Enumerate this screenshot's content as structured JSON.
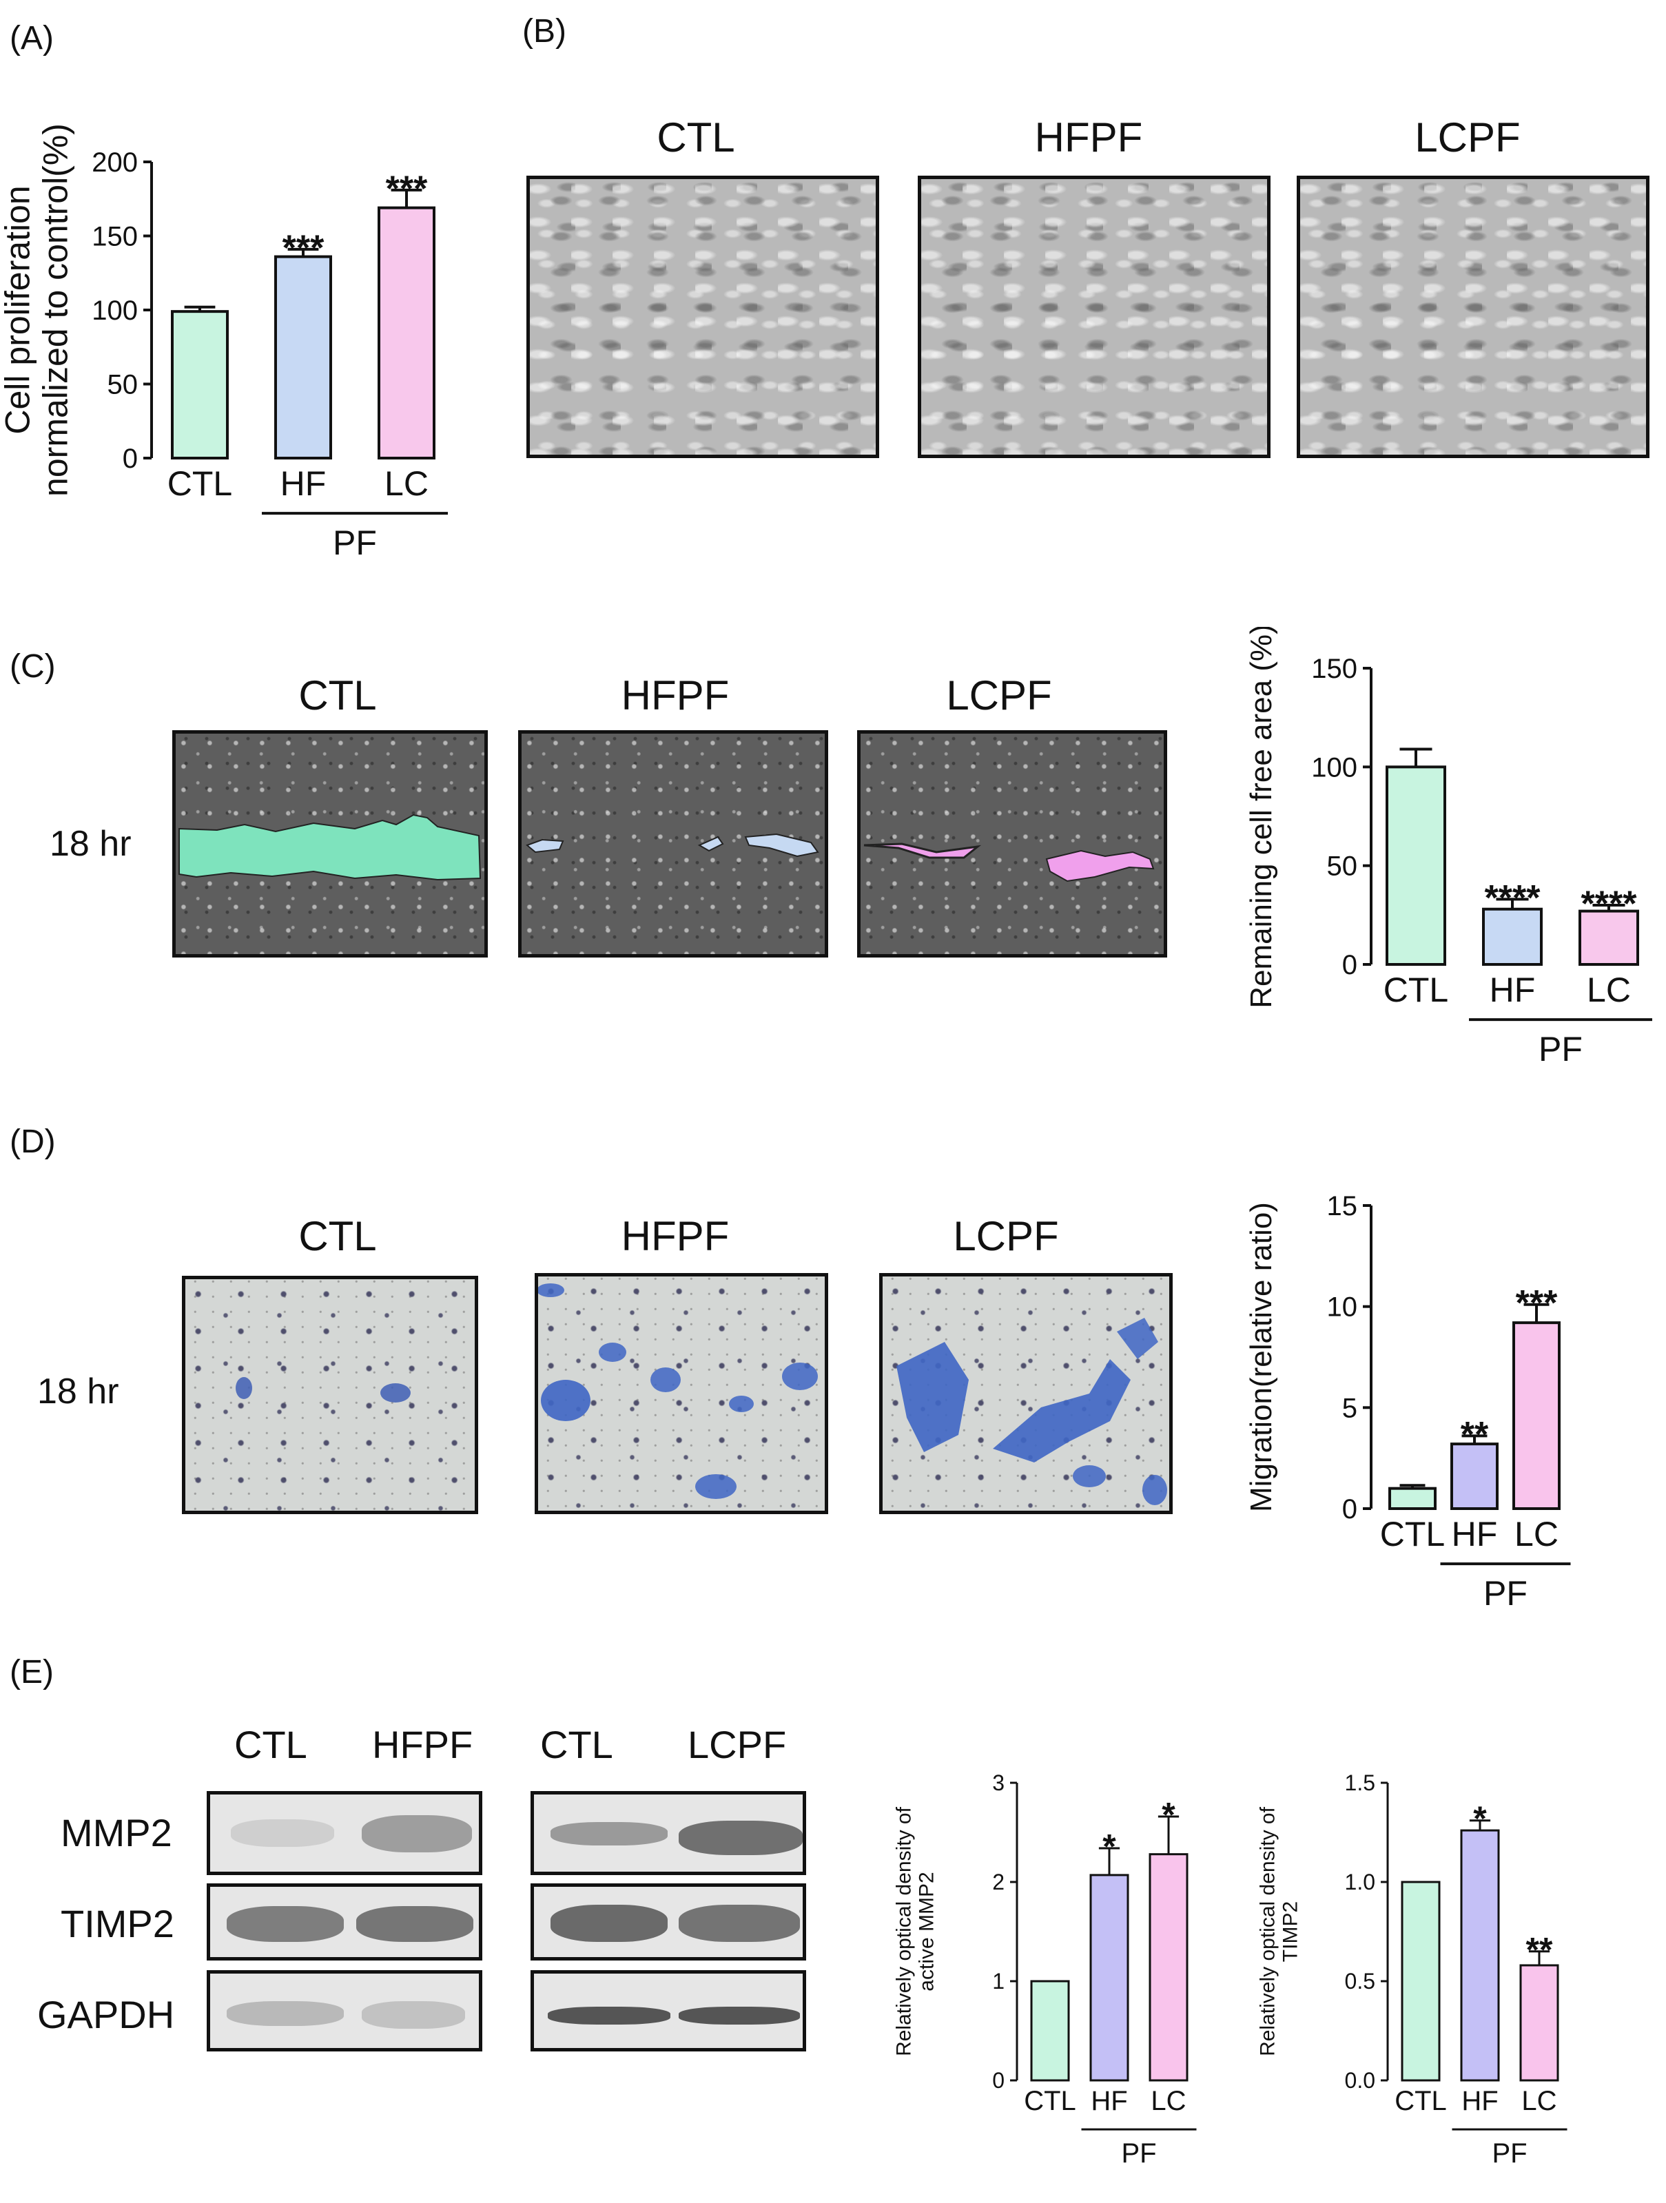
{
  "panel_labels": {
    "a": "(A)",
    "b": "(B)",
    "c": "(C)",
    "d": "(D)",
    "e": "(E)"
  },
  "panel_b": {
    "titles": [
      "CTL",
      "HFPF",
      "LCPF"
    ]
  },
  "panel_c": {
    "titles": [
      "CTL",
      "HFPF",
      "LCPF"
    ],
    "row_label": "18 hr"
  },
  "panel_d": {
    "titles": [
      "CTL",
      "HFPF",
      "LCPF"
    ],
    "row_label": "18 hr"
  },
  "panel_e": {
    "blot_left_titles": [
      "CTL",
      "HFPF"
    ],
    "blot_right_titles": [
      "CTL",
      "LCPF"
    ],
    "proteins": [
      "MMP2",
      "TIMP2",
      "GAPDH"
    ]
  },
  "colors": {
    "ctl": "#c8f4e0",
    "hf": "#c7d9f4",
    "lc": "#f8c8ec",
    "hf_e": "#c4c0f6",
    "lc_e": "#f9c4ec",
    "scratch_ctl": "#7ee3bd",
    "scratch_hf": "#c6d9f2",
    "scratch_lc": "#f0a0ec"
  },
  "chart_data": [
    {
      "id": "A",
      "type": "bar",
      "ylabel": [
        "Cell proliferation",
        "normalized to control(%)"
      ],
      "categories": [
        "CTL",
        "HF",
        "LC"
      ],
      "group_label": "PF",
      "values": [
        99,
        136,
        169
      ],
      "errors": [
        3,
        5,
        12
      ],
      "significance": [
        "",
        "***",
        "***"
      ],
      "ylim": [
        0,
        200
      ],
      "yticks": [
        "0",
        "50",
        "100",
        "150",
        "200"
      ],
      "ytick_values": [
        0,
        50,
        100,
        150,
        200
      ]
    },
    {
      "id": "C",
      "type": "bar",
      "ylabel": [
        "Remaining cell free area (%)"
      ],
      "categories": [
        "CTL",
        "HF",
        "LC"
      ],
      "group_label": "PF",
      "values": [
        100,
        28,
        27
      ],
      "errors": [
        9,
        5,
        3
      ],
      "significance": [
        "",
        "****",
        "****"
      ],
      "ylim": [
        0,
        150
      ],
      "yticks": [
        "0",
        "50",
        "100",
        "150"
      ],
      "ytick_values": [
        0,
        50,
        100,
        150
      ]
    },
    {
      "id": "D",
      "type": "bar",
      "ylabel": [
        "Migration(relative ratio)"
      ],
      "categories": [
        "CTL",
        "HF",
        "LC"
      ],
      "group_label": "PF",
      "values": [
        1.0,
        3.2,
        9.2
      ],
      "errors": [
        0.15,
        0.4,
        0.9
      ],
      "significance": [
        "",
        "**",
        "***"
      ],
      "ylim": [
        0,
        15
      ],
      "yticks": [
        "0",
        "5",
        "10",
        "15"
      ],
      "ytick_values": [
        0,
        5,
        10,
        15
      ]
    },
    {
      "id": "E1",
      "type": "bar",
      "ylabel": [
        "Relatively optical density of",
        "active MMP2"
      ],
      "categories": [
        "CTL",
        "HF",
        "LC"
      ],
      "group_label": "PF",
      "values": [
        1.0,
        2.07,
        2.28
      ],
      "errors": [
        0,
        0.27,
        0.38
      ],
      "significance": [
        "",
        "*",
        "*"
      ],
      "ylim": [
        0,
        3
      ],
      "yticks": [
        "0",
        "1",
        "2",
        "3"
      ],
      "ytick_values": [
        0,
        1,
        2,
        3
      ]
    },
    {
      "id": "E2",
      "type": "bar",
      "ylabel": [
        "Relatively optical density of",
        "TIMP2"
      ],
      "categories": [
        "CTL",
        "HF",
        "LC"
      ],
      "group_label": "PF",
      "values": [
        1.0,
        1.26,
        0.58
      ],
      "errors": [
        0,
        0.05,
        0.07
      ],
      "significance": [
        "",
        "*",
        "**"
      ],
      "ylim": [
        0,
        1.5
      ],
      "yticks": [
        "0.0",
        "0.5",
        "1.0",
        "1.5"
      ],
      "ytick_values": [
        0,
        0.5,
        1.0,
        1.5
      ]
    }
  ]
}
